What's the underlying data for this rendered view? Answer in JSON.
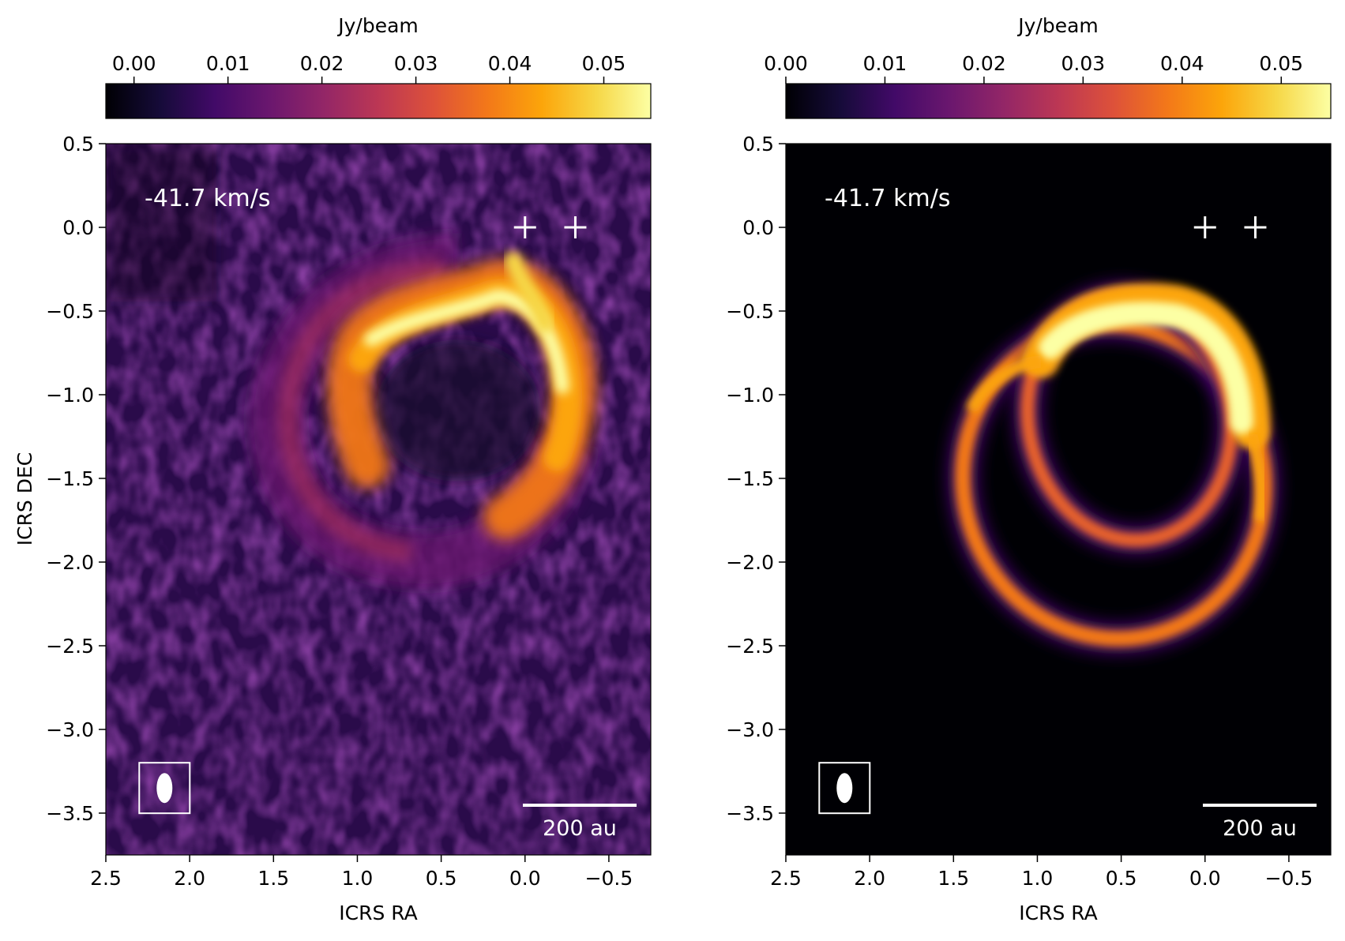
{
  "chart_data": [
    {
      "type": "heatmap",
      "panel": "observed",
      "xlabel": "ICRS RA",
      "ylabel": "ICRS DEC",
      "xlim": [
        2.5,
        -0.75
      ],
      "ylim": [
        -3.75,
        0.5
      ],
      "x_ticks": [
        2.5,
        2.0,
        1.5,
        1.0,
        0.5,
        0.0,
        -0.5
      ],
      "x_tick_labels": [
        "2.5",
        "2.0",
        "1.5",
        "1.0",
        "0.5",
        "0.0",
        "−0.5"
      ],
      "y_ticks": [
        0.5,
        0.0,
        -0.5,
        -1.0,
        -1.5,
        -2.0,
        -2.5,
        -3.0,
        -3.5
      ],
      "y_tick_labels": [
        "0.5",
        "0.0",
        "−0.5",
        "−1.0",
        "−1.5",
        "−2.0",
        "−2.5",
        "−3.0",
        "−3.5"
      ],
      "colorbar": {
        "label": "Jy/beam",
        "range": [
          -0.003,
          0.055
        ],
        "ticks": [
          0.0,
          0.01,
          0.02,
          0.03,
          0.04,
          0.05
        ],
        "tick_labels": [
          "0.00",
          "0.01",
          "0.02",
          "0.03",
          "0.04",
          "0.05"
        ],
        "colormap": "inferno",
        "position": "top"
      },
      "velocity_label": "-41.7 km/s",
      "markers": [
        {
          "x": 0.0,
          "y": 0.0
        },
        {
          "x": -0.3,
          "y": 0.0
        }
      ],
      "scalebar_label": "200 au",
      "beam": {
        "x": 2.15,
        "y": -3.35
      }
    },
    {
      "type": "heatmap",
      "panel": "model",
      "xlabel": "ICRS RA",
      "ylabel": "",
      "xlim": [
        2.5,
        -0.75
      ],
      "ylim": [
        -3.75,
        0.5
      ],
      "x_ticks": [
        2.5,
        2.0,
        1.5,
        1.0,
        0.5,
        0.0,
        -0.5
      ],
      "x_tick_labels": [
        "2.5",
        "2.0",
        "1.5",
        "1.0",
        "0.5",
        "0.0",
        "−0.5"
      ],
      "y_ticks": [
        0.5,
        0.0,
        -0.5,
        -1.0,
        -1.5,
        -2.0,
        -2.5,
        -3.0,
        -3.5
      ],
      "y_tick_labels": [
        "0.5",
        "0.0",
        "−0.5",
        "−1.0",
        "−1.5",
        "−2.0",
        "−2.5",
        "−3.0",
        "−3.5"
      ],
      "colorbar": {
        "label": "Jy/beam",
        "range": [
          0.0,
          0.055
        ],
        "ticks": [
          0.0,
          0.01,
          0.02,
          0.03,
          0.04,
          0.05
        ],
        "tick_labels": [
          "0.00",
          "0.01",
          "0.02",
          "0.03",
          "0.04",
          "0.05"
        ],
        "colormap": "inferno",
        "position": "top"
      },
      "velocity_label": "-41.7 km/s",
      "markers": [
        {
          "x": 0.0,
          "y": 0.0
        },
        {
          "x": -0.3,
          "y": 0.0
        }
      ],
      "scalebar_label": "200 au",
      "beam": {
        "x": 2.15,
        "y": -3.35
      }
    }
  ]
}
